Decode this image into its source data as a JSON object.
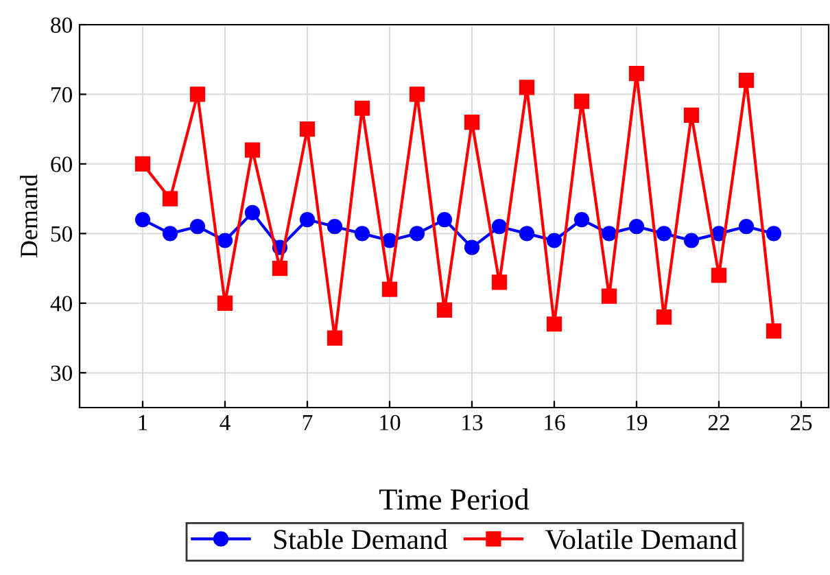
{
  "chart_data": {
    "type": "line",
    "xlabel": "Time Period",
    "ylabel": "Demand",
    "x": [
      1,
      2,
      3,
      4,
      5,
      6,
      7,
      8,
      9,
      10,
      11,
      12,
      13,
      14,
      15,
      16,
      17,
      18,
      19,
      20,
      21,
      22,
      23,
      24
    ],
    "series": [
      {
        "name": "Stable Demand",
        "color": "#0000ff",
        "marker": "circle",
        "values": [
          52,
          50,
          51,
          49,
          53,
          48,
          52,
          51,
          50,
          49,
          50,
          52,
          48,
          51,
          50,
          49,
          52,
          50,
          51,
          50,
          49,
          50,
          51,
          50
        ]
      },
      {
        "name": "Volatile Demand",
        "color": "#ff0000",
        "marker": "square",
        "values": [
          60,
          55,
          70,
          40,
          62,
          45,
          65,
          35,
          68,
          42,
          70,
          39,
          66,
          43,
          71,
          37,
          69,
          41,
          73,
          38,
          67,
          44,
          72,
          36
        ]
      }
    ],
    "xlim": [
      -1.3,
      26
    ],
    "xticks": [
      1,
      4,
      7,
      10,
      13,
      16,
      19,
      22,
      25
    ],
    "ylim": [
      25,
      80
    ],
    "yticks": [
      30,
      40,
      50,
      60,
      70,
      80
    ],
    "grid": true,
    "legend": "bottom",
    "line_style": "solid"
  }
}
